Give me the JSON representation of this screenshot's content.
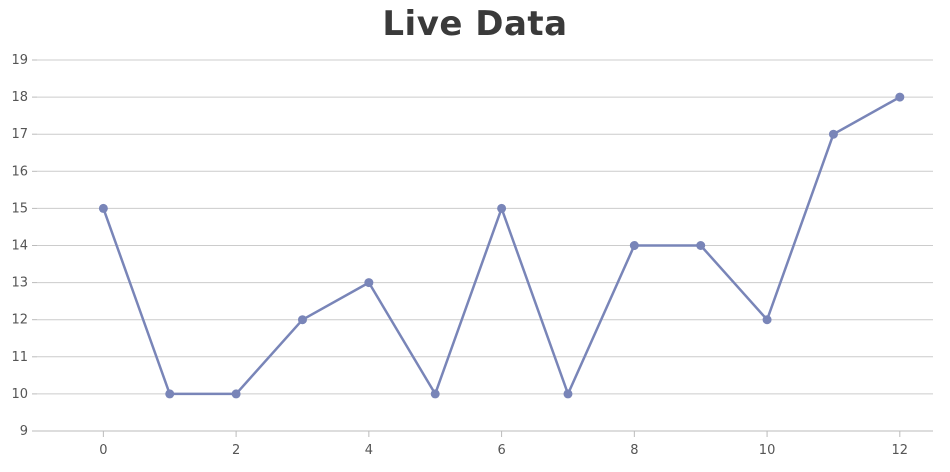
{
  "chart_data": {
    "type": "line",
    "title": "Live Data",
    "xlabel": "",
    "ylabel": "",
    "x": [
      0,
      1,
      2,
      3,
      4,
      5,
      6,
      7,
      8,
      9,
      10,
      11,
      12
    ],
    "series": [
      {
        "values": [
          15,
          10,
          10,
          12,
          13,
          10,
          15,
          10,
          14,
          14,
          12,
          17,
          18
        ]
      }
    ],
    "xlim": [
      -1,
      12.5
    ],
    "ylim": [
      9,
      19
    ],
    "xticks": [
      0,
      2,
      4,
      6,
      8,
      10,
      12
    ],
    "yticks": [
      9,
      10,
      11,
      12,
      13,
      14,
      15,
      16,
      17,
      18,
      19
    ],
    "grid": "horizontal",
    "legend": "none",
    "colors": {
      "series": "#7985b8",
      "grid": "#cccccc",
      "axis": "#bbbbbb"
    }
  }
}
